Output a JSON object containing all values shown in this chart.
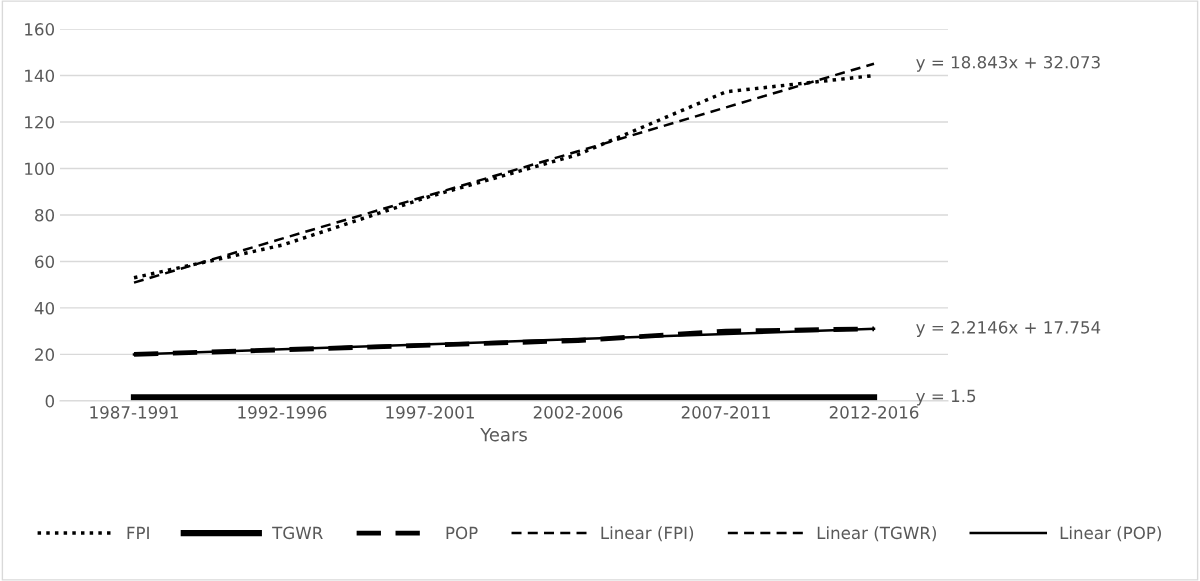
{
  "chart_data": {
    "type": "line",
    "xlabel": "Years",
    "categories": [
      "1987-1991",
      "1992-1996",
      "1997-2001",
      "2002-2006",
      "2007-2011",
      "2012-2016"
    ],
    "ylim": [
      0,
      160
    ],
    "yticks": [
      0,
      20,
      40,
      60,
      80,
      100,
      120,
      140,
      160
    ],
    "grid": "y",
    "legend": "bottom",
    "series": [
      {
        "name": "FPI",
        "color": "#000000",
        "line_style": "dotted",
        "values": [
          53,
          67,
          88,
          106,
          133,
          140
        ]
      },
      {
        "name": "TGWR",
        "color": "#000000",
        "line_style": "solid",
        "values": [
          1.5,
          1.5,
          1.5,
          1.5,
          1.5,
          1.5
        ]
      },
      {
        "name": "POP",
        "color": "#000000",
        "line_style": "dashed",
        "values": [
          20,
          22,
          24,
          26,
          30,
          31
        ]
      },
      {
        "name": "Linear (FPI)",
        "color": "#000000",
        "line_style": "dashed",
        "values": [
          50.9,
          69.8,
          88.6,
          107.4,
          126.3,
          145.1
        ]
      },
      {
        "name": "Linear (TGWR)",
        "color": "#000000",
        "line_style": "dashed",
        "values": [
          null,
          null,
          null,
          null,
          null,
          null
        ]
      },
      {
        "name": "Linear (POP)",
        "color": "#000000",
        "line_style": "solid",
        "values": [
          20.0,
          22.2,
          24.4,
          26.6,
          28.8,
          31.0
        ]
      }
    ],
    "annotations": [
      {
        "text": "y = 18.843x + 32.073",
        "x": "2012-2016",
        "y": 145.1
      },
      {
        "text": "y = 2.2146x + 17.754",
        "x": "2012-2016",
        "y": 31.0
      },
      {
        "text": "y = 1.5",
        "x": "2012-2016",
        "y": 1.5
      }
    ]
  }
}
